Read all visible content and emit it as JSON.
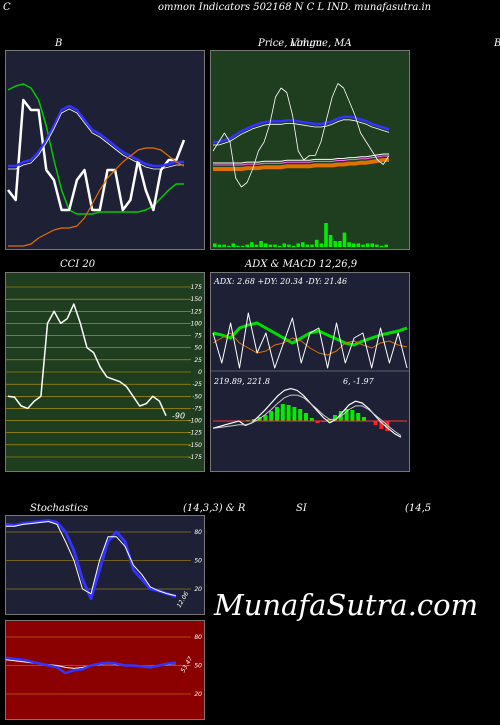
{
  "header": {
    "left_letter": "C",
    "title": "ommon  Indicators 502168  N  C L IND. munafasutra.in"
  },
  "panels": {
    "bollinger": {
      "label": "B"
    },
    "price": {
      "label": "Price,  Volume,  MA",
      "overlap_label": "Limgu",
      "right_letter": "B"
    },
    "cci": {
      "label": "CCI 20",
      "value_label": "-90"
    },
    "adx": {
      "label": "ADX  & MACD 12,26,9",
      "adx_text": "ADX: 2.68  +DY: 20.34  -DY: 21.46",
      "macd_text_left": "219.89,  221.8",
      "macd_text_right": "6,  -1.97"
    },
    "stochastics": {
      "label": "Stochastics",
      "params": "(14,3,3) & R",
      "value_label": "12.06"
    },
    "rsi": {
      "label": "SI",
      "params": "(14,5",
      "value_label": "53.47"
    }
  },
  "watermark": "MunafaSutra.com",
  "chart_data": [
    {
      "type": "line",
      "id": "bollinger",
      "series": [
        {
          "color": "#00cc00",
          "values": [
            30,
            32,
            33,
            31,
            25,
            12,
            -5,
            -20,
            -30,
            -32,
            -32,
            -32,
            -31,
            -31,
            -31,
            -31,
            -31,
            -31,
            -30,
            -28,
            -24,
            -20,
            -17,
            -17
          ]
        },
        {
          "color": "#ffffff",
          "values": [
            -20,
            -25,
            25,
            20,
            20,
            -10,
            -15,
            -30,
            -30,
            -15,
            -10,
            -30,
            -30,
            -10,
            -10,
            -30,
            -25,
            -5,
            -20,
            -30,
            -10,
            -5,
            -5,
            5
          ]
        },
        {
          "color": "#3333ff",
          "values": [
            -8,
            -8,
            -6,
            -5,
            -1,
            5,
            12,
            20,
            22,
            20,
            15,
            10,
            8,
            5,
            2,
            -1,
            -3,
            -5,
            -7,
            -8,
            -8,
            -7,
            -6,
            -6
          ]
        },
        {
          "color": "#e07000",
          "values": [
            -48,
            -48,
            -48,
            -47,
            -44,
            -42,
            -40,
            -39,
            -39,
            -38,
            -34,
            -27,
            -20,
            -14,
            -10,
            -6,
            -3,
            0,
            1,
            1,
            0,
            -3,
            -6,
            -8
          ]
        }
      ]
    },
    {
      "type": "line",
      "id": "price",
      "series": [
        {
          "color": "#ffffff",
          "values": [
            0,
            10,
            20,
            10,
            -30,
            -40,
            -35,
            -20,
            0,
            10,
            30,
            60,
            70,
            65,
            40,
            0,
            -10,
            -5,
            -5,
            10,
            35,
            60,
            75,
            70,
            55,
            40,
            20,
            10,
            0,
            -10,
            -15,
            -5
          ]
        },
        {
          "color": "#3333ff",
          "values": [
            10,
            10,
            12,
            14,
            18,
            22,
            25,
            28,
            30,
            32,
            33,
            33,
            33,
            34,
            34,
            33,
            32,
            31,
            30,
            30,
            31,
            33,
            36,
            38,
            38,
            37,
            35,
            33,
            30,
            28,
            26,
            24
          ]
        },
        {
          "color": "#e07000",
          "values": [
            -20,
            -20,
            -20,
            -20,
            -20,
            -20,
            -19,
            -19,
            -19,
            -18,
            -18,
            -18,
            -18,
            -17,
            -17,
            -17,
            -17,
            -17,
            -16,
            -16,
            -16,
            -16,
            -15,
            -15,
            -14,
            -14,
            -13,
            -13,
            -12,
            -11,
            -10,
            -10
          ]
        }
      ],
      "volume": [
        3,
        2,
        2,
        1,
        3,
        1,
        1,
        2,
        4,
        2,
        5,
        3,
        2,
        2,
        1,
        3,
        2,
        1,
        3,
        4,
        2,
        2,
        6,
        3,
        20,
        10,
        5,
        5,
        12,
        4,
        3,
        3,
        2,
        3,
        3,
        2,
        1,
        2
      ]
    },
    {
      "type": "line",
      "id": "cci",
      "ylim": [
        -175,
        175
      ],
      "yticks": [
        175,
        150,
        125,
        100,
        75,
        50,
        25,
        0,
        -25,
        -50,
        -75,
        -100,
        -125,
        -150,
        -175
      ],
      "values": [
        -50,
        -52,
        -70,
        -75,
        -60,
        -50,
        100,
        125,
        100,
        110,
        140,
        100,
        50,
        40,
        10,
        -10,
        -15,
        -20,
        -30,
        -50,
        -70,
        -65,
        -50,
        -60,
        -90
      ]
    },
    {
      "type": "line",
      "id": "stochastics",
      "yticks": [
        80,
        50,
        20
      ],
      "series": [
        {
          "name": "K",
          "color": "#3333ff",
          "values": [
            88,
            87,
            89,
            90,
            91,
            92,
            90,
            80,
            60,
            30,
            10,
            40,
            70,
            80,
            70,
            40,
            30,
            20,
            18,
            15,
            12
          ]
        },
        {
          "name": "D",
          "color": "#ffffff",
          "values": [
            86,
            86,
            88,
            89,
            90,
            91,
            88,
            70,
            50,
            20,
            15,
            50,
            75,
            75,
            65,
            45,
            35,
            22,
            18,
            15,
            13
          ]
        }
      ]
    },
    {
      "type": "line",
      "id": "rsi",
      "yticks": [
        80,
        50,
        20
      ],
      "series": [
        {
          "name": "RSI",
          "color": "#3333ff",
          "values": [
            58,
            57,
            56,
            54,
            52,
            50,
            48,
            42,
            45,
            46,
            50,
            52,
            53,
            52,
            50,
            50,
            49,
            48,
            50,
            52,
            53
          ]
        },
        {
          "name": "signal",
          "color": "#ffffff",
          "values": [
            56,
            55,
            54,
            53,
            52,
            51,
            50,
            48,
            47,
            48,
            50,
            51,
            52,
            51,
            50,
            50,
            49,
            49,
            50,
            51,
            52
          ]
        }
      ]
    }
  ]
}
